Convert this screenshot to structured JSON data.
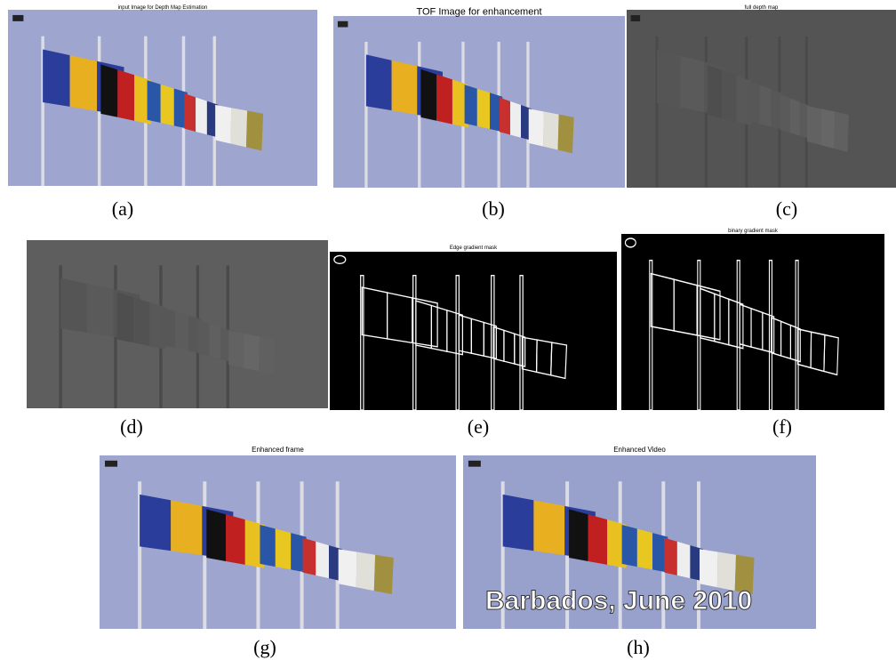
{
  "panels": [
    {
      "title": "input Image for Depth Map Estimation",
      "caption": "(a)"
    },
    {
      "title": "TOF Image for enhancement",
      "caption": "(b)"
    },
    {
      "title": "full depth map",
      "caption": "(c)"
    },
    {
      "caption": "(d)"
    },
    {
      "title": "Edge gradient mask",
      "caption": "(e)"
    },
    {
      "title": "binary gradient mask",
      "caption": "(f)"
    },
    {
      "title": "Enhanced frame",
      "caption": "(g)"
    },
    {
      "title": "Enhanced Video",
      "caption": "(h)",
      "overlay_text": "Barbados, June 2010"
    }
  ]
}
